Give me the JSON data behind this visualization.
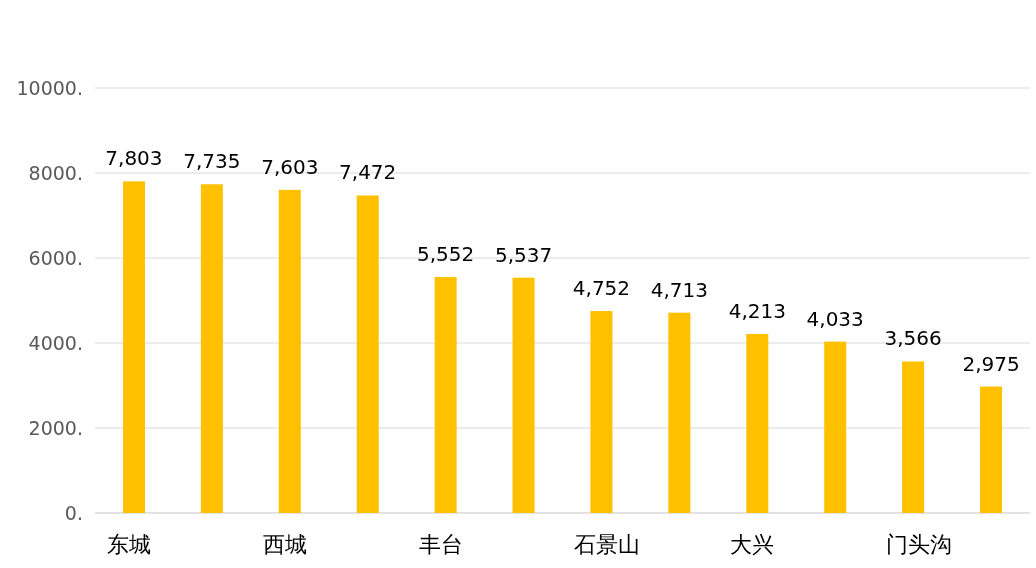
{
  "chart_data": {
    "type": "bar",
    "categories": [
      "东城",
      null,
      "西城",
      null,
      "丰台",
      null,
      "石景山",
      null,
      "大兴",
      null,
      "门头沟",
      null
    ],
    "values": [
      7803,
      7735,
      7603,
      7472,
      5552,
      5537,
      4752,
      4713,
      4213,
      4033,
      3566,
      2975
    ],
    "value_labels": [
      "7,803",
      "7,735",
      "7,603",
      "7,472",
      "5,552",
      "5,537",
      "4,752",
      "4,713",
      "4,213",
      "4,033",
      "3,566",
      "2,975"
    ],
    "color": "#ffc000",
    "ylim": [
      0,
      10000
    ],
    "yticks": [
      {
        "value": 0,
        "label": "0."
      },
      {
        "value": 2000,
        "label": "2000."
      },
      {
        "value": 4000,
        "label": "4000."
      },
      {
        "value": 6000,
        "label": "6000."
      },
      {
        "value": 8000,
        "label": "8000."
      },
      {
        "value": 10000,
        "label": "10000."
      }
    ],
    "grid": "y"
  }
}
